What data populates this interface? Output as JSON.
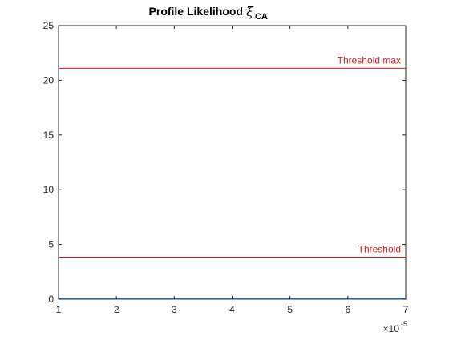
{
  "chart_data": {
    "type": "line",
    "title": "Profile Likelihood",
    "title_symbol": "ξ",
    "title_subscript": "CA",
    "xlabel": "",
    "ylabel": "",
    "x_exponent_label": {
      "prefix": "×10",
      "exponent": "-5"
    },
    "xlim": [
      1,
      7
    ],
    "ylim": [
      0,
      25
    ],
    "x_ticks": [
      1,
      2,
      3,
      4,
      5,
      6,
      7
    ],
    "y_ticks": [
      0,
      5,
      10,
      15,
      20,
      25
    ],
    "x_tick_labels": [
      "1",
      "2",
      "3",
      "4",
      "5",
      "6",
      "7"
    ],
    "y_tick_labels": [
      "0",
      "5",
      "10",
      "15",
      "20",
      "25"
    ],
    "grid": false,
    "series": [
      {
        "color": "#1f6fb0",
        "x": [
          1,
          2,
          3,
          4,
          5,
          6,
          7
        ],
        "y": [
          0,
          0,
          0,
          0,
          0,
          0,
          0
        ]
      }
    ],
    "reference_lines": [
      {
        "label": "Threshold max",
        "y": 21.1,
        "color": "#e41a1c"
      },
      {
        "label": "Threshold",
        "y": 3.84,
        "color": "#e41a1c"
      }
    ]
  },
  "colors": {
    "axes": "#262626",
    "threshold": "#e41a1c",
    "series": "#1f6fb0"
  }
}
